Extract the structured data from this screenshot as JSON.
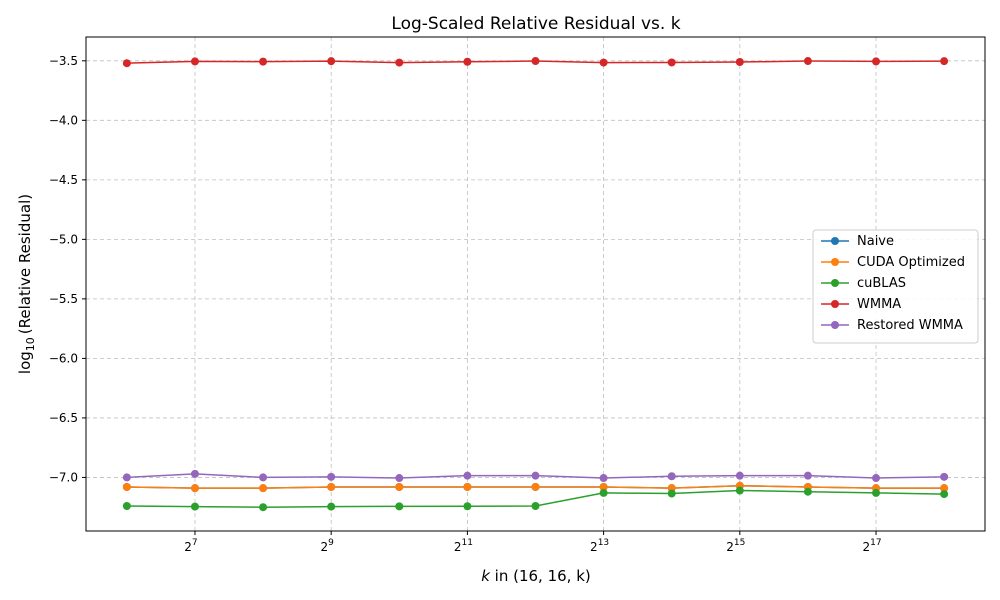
{
  "chart_data": {
    "type": "line",
    "title": "Log-Scaled Relative Residual vs. k",
    "xlabel": {
      "prefix": "k",
      "suffix": " in (16, 16, k)"
    },
    "ylabel": {
      "base": "log",
      "sub": "10",
      "rest": "(Relative Residual)"
    },
    "x_scale": "log2",
    "x": [
      64,
      128,
      256,
      512,
      1024,
      2048,
      4096,
      8192,
      16384,
      32768,
      65536,
      131072,
      262144
    ],
    "x_ticks": [
      {
        "value": 128,
        "base": "2",
        "exp": "7"
      },
      {
        "value": 512,
        "base": "2",
        "exp": "9"
      },
      {
        "value": 2048,
        "base": "2",
        "exp": "11"
      },
      {
        "value": 8192,
        "base": "2",
        "exp": "13"
      },
      {
        "value": 32768,
        "base": "2",
        "exp": "15"
      },
      {
        "value": 131072,
        "base": "2",
        "exp": "17"
      }
    ],
    "ylim": [
      -7.45,
      -3.3
    ],
    "y_ticks": [
      {
        "value": -3.5,
        "label": "−3.5"
      },
      {
        "value": -4.0,
        "label": "−4.0"
      },
      {
        "value": -4.5,
        "label": "−4.5"
      },
      {
        "value": -5.0,
        "label": "−5.0"
      },
      {
        "value": -5.5,
        "label": "−5.5"
      },
      {
        "value": -6.0,
        "label": "−6.0"
      },
      {
        "value": -6.5,
        "label": "−6.5"
      },
      {
        "value": -7.0,
        "label": "−7.0"
      }
    ],
    "grid": true,
    "legend_position": "right",
    "series": [
      {
        "name": "Naive",
        "color": "#1f77b4",
        "values": [
          -7.08,
          -7.09,
          -7.09,
          -7.08,
          -7.08,
          -7.08,
          -7.08,
          -7.08,
          -7.09,
          -7.07,
          -7.08,
          -7.09,
          -7.09
        ]
      },
      {
        "name": "CUDA Optimized",
        "color": "#ff7f0e",
        "values": [
          -7.08,
          -7.09,
          -7.09,
          -7.08,
          -7.08,
          -7.08,
          -7.08,
          -7.08,
          -7.09,
          -7.07,
          -7.08,
          -7.09,
          -7.09
        ]
      },
      {
        "name": "cuBLAS",
        "color": "#2ca02c",
        "values": [
          -7.24,
          -7.245,
          -7.25,
          -7.245,
          -7.243,
          -7.242,
          -7.24,
          -7.13,
          -7.135,
          -7.11,
          -7.12,
          -7.13,
          -7.14
        ]
      },
      {
        "name": "WMMA",
        "color": "#d62728",
        "values": [
          -3.52,
          -3.505,
          -3.507,
          -3.503,
          -3.515,
          -3.508,
          -3.502,
          -3.515,
          -3.514,
          -3.51,
          -3.502,
          -3.505,
          -3.503
        ]
      },
      {
        "name": "Restored WMMA",
        "color": "#9467bd",
        "values": [
          -7.0,
          -6.97,
          -7.0,
          -6.995,
          -7.005,
          -6.985,
          -6.985,
          -7.005,
          -6.99,
          -6.985,
          -6.985,
          -7.005,
          -6.995
        ]
      }
    ]
  }
}
